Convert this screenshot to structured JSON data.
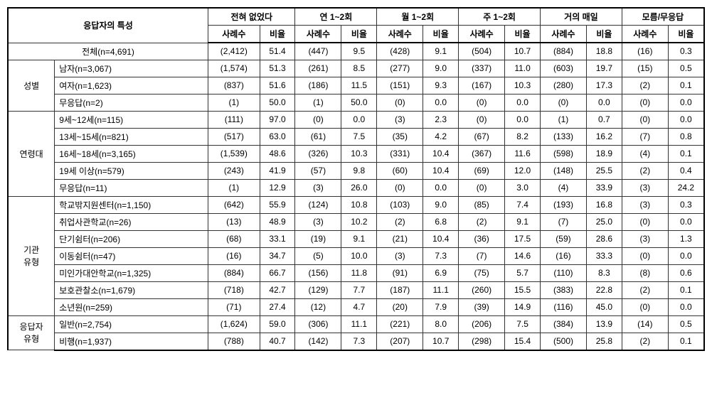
{
  "table": {
    "type": "table",
    "background_color": "#ffffff",
    "border_color": "#333333",
    "font_size": 12,
    "header": {
      "row_header": "응답자의 특성",
      "col_groups": [
        "전혀 없었다",
        "연 1~2회",
        "월 1~2회",
        "주 1~2회",
        "거의 매일",
        "모름/무응답"
      ],
      "sub_headers": [
        "사례수",
        "비율"
      ]
    },
    "total_row": {
      "label": "전체(n=4,691)",
      "values": [
        "(2,412)",
        "51.4",
        "(447)",
        "9.5",
        "(428)",
        "9.1",
        "(504)",
        "10.7",
        "(884)",
        "18.8",
        "(16)",
        "0.3"
      ]
    },
    "groups": [
      {
        "name": "성별",
        "rows": [
          {
            "label": "남자(n=3,067)",
            "values": [
              "(1,574)",
              "51.3",
              "(261)",
              "8.5",
              "(277)",
              "9.0",
              "(337)",
              "11.0",
              "(603)",
              "19.7",
              "(15)",
              "0.5"
            ]
          },
          {
            "label": "여자(n=1,623)",
            "values": [
              "(837)",
              "51.6",
              "(186)",
              "11.5",
              "(151)",
              "9.3",
              "(167)",
              "10.3",
              "(280)",
              "17.3",
              "(2)",
              "0.1"
            ]
          },
          {
            "label": "무응답(n=2)",
            "values": [
              "(1)",
              "50.0",
              "(1)",
              "50.0",
              "(0)",
              "0.0",
              "(0)",
              "0.0",
              "(0)",
              "0.0",
              "(0)",
              "0.0"
            ]
          }
        ]
      },
      {
        "name": "연령대",
        "rows": [
          {
            "label": "9세~12세(n=115)",
            "values": [
              "(111)",
              "97.0",
              "(0)",
              "0.0",
              "(3)",
              "2.3",
              "(0)",
              "0.0",
              "(1)",
              "0.7",
              "(0)",
              "0.0"
            ]
          },
          {
            "label": "13세~15세(n=821)",
            "values": [
              "(517)",
              "63.0",
              "(61)",
              "7.5",
              "(35)",
              "4.2",
              "(67)",
              "8.2",
              "(133)",
              "16.2",
              "(7)",
              "0.8"
            ]
          },
          {
            "label": "16세~18세(n=3,165)",
            "values": [
              "(1,539)",
              "48.6",
              "(326)",
              "10.3",
              "(331)",
              "10.4",
              "(367)",
              "11.6",
              "(598)",
              "18.9",
              "(4)",
              "0.1"
            ]
          },
          {
            "label": "19세 이상(n=579)",
            "values": [
              "(243)",
              "41.9",
              "(57)",
              "9.8",
              "(60)",
              "10.4",
              "(69)",
              "12.0",
              "(148)",
              "25.5",
              "(2)",
              "0.4"
            ]
          },
          {
            "label": "무응답(n=11)",
            "values": [
              "(1)",
              "12.9",
              "(3)",
              "26.0",
              "(0)",
              "0.0",
              "(0)",
              "3.0",
              "(4)",
              "33.9",
              "(3)",
              "24.2"
            ]
          }
        ]
      },
      {
        "name": "기관\n유형",
        "rows": [
          {
            "label": "학교밖지원센터(n=1,150)",
            "values": [
              "(642)",
              "55.9",
              "(124)",
              "10.8",
              "(103)",
              "9.0",
              "(85)",
              "7.4",
              "(193)",
              "16.8",
              "(3)",
              "0.3"
            ]
          },
          {
            "label": "취업사관학교(n=26)",
            "values": [
              "(13)",
              "48.9",
              "(3)",
              "10.2",
              "(2)",
              "6.8",
              "(2)",
              "9.1",
              "(7)",
              "25.0",
              "(0)",
              "0.0"
            ]
          },
          {
            "label": "단기쉼터(n=206)",
            "values": [
              "(68)",
              "33.1",
              "(19)",
              "9.1",
              "(21)",
              "10.4",
              "(36)",
              "17.5",
              "(59)",
              "28.6",
              "(3)",
              "1.3"
            ]
          },
          {
            "label": "이동쉼터(n=47)",
            "values": [
              "(16)",
              "34.7",
              "(5)",
              "10.0",
              "(3)",
              "7.3",
              "(7)",
              "14.6",
              "(16)",
              "33.3",
              "(0)",
              "0.0"
            ]
          },
          {
            "label": "미인가대안학교(n=1,325)",
            "values": [
              "(884)",
              "66.7",
              "(156)",
              "11.8",
              "(91)",
              "6.9",
              "(75)",
              "5.7",
              "(110)",
              "8.3",
              "(8)",
              "0.6"
            ]
          },
          {
            "label": "보호관찰소(n=1,679)",
            "values": [
              "(718)",
              "42.7",
              "(129)",
              "7.7",
              "(187)",
              "11.1",
              "(260)",
              "15.5",
              "(383)",
              "22.8",
              "(2)",
              "0.1"
            ]
          },
          {
            "label": "소년원(n=259)",
            "values": [
              "(71)",
              "27.4",
              "(12)",
              "4.7",
              "(20)",
              "7.9",
              "(39)",
              "14.9",
              "(116)",
              "45.0",
              "(0)",
              "0.0"
            ]
          }
        ]
      },
      {
        "name": "응답자\n유형",
        "rows": [
          {
            "label": "일반(n=2,754)",
            "values": [
              "(1,624)",
              "59.0",
              "(306)",
              "11.1",
              "(221)",
              "8.0",
              "(206)",
              "7.5",
              "(384)",
              "13.9",
              "(14)",
              "0.5"
            ]
          },
          {
            "label": "비행(n=1,937)",
            "values": [
              "(788)",
              "40.7",
              "(142)",
              "7.3",
              "(207)",
              "10.7",
              "(298)",
              "15.4",
              "(500)",
              "25.8",
              "(2)",
              "0.1"
            ]
          }
        ]
      }
    ]
  }
}
